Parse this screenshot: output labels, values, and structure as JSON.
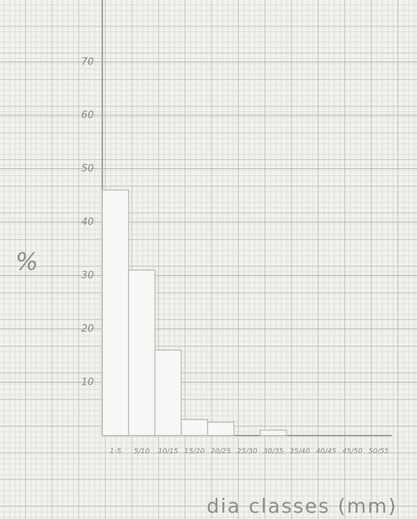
{
  "chart_data": {
    "type": "bar",
    "y_label": "%",
    "x_label": "dia classes (mm)",
    "categories": [
      "1-5",
      "5/10",
      "10/15",
      "15/20",
      "20/25",
      "25/30",
      "30/35",
      "35/40",
      "40/45",
      "45/50",
      "50/55"
    ],
    "values": [
      46,
      31,
      16,
      3,
      2.5,
      0,
      1,
      0,
      0,
      0,
      0
    ],
    "color": "#f7f7f5",
    "ylim": [
      0,
      80
    ],
    "yticks": [
      10,
      20,
      30,
      40,
      50,
      60,
      70
    ],
    "grid": true
  }
}
